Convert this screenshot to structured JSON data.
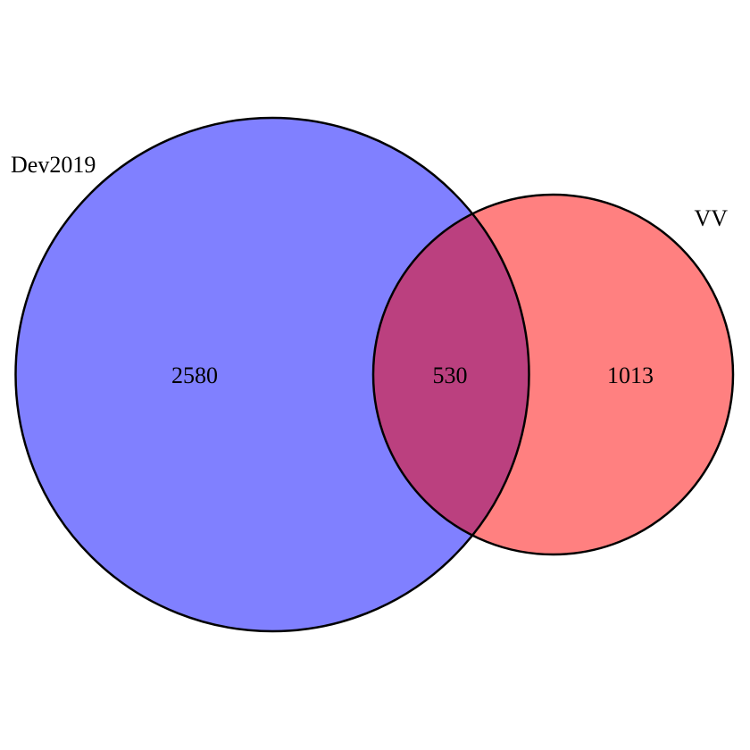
{
  "sets": [
    {
      "name": "Dev2019",
      "only_count": "2580",
      "color": "#8080ff"
    },
    {
      "name": "VV",
      "only_count": "1013",
      "color": "#ff8080"
    }
  ],
  "intersection": {
    "count": "530",
    "color": "#bb407f"
  },
  "outline_color": "#000000",
  "background": "#ffffff"
}
